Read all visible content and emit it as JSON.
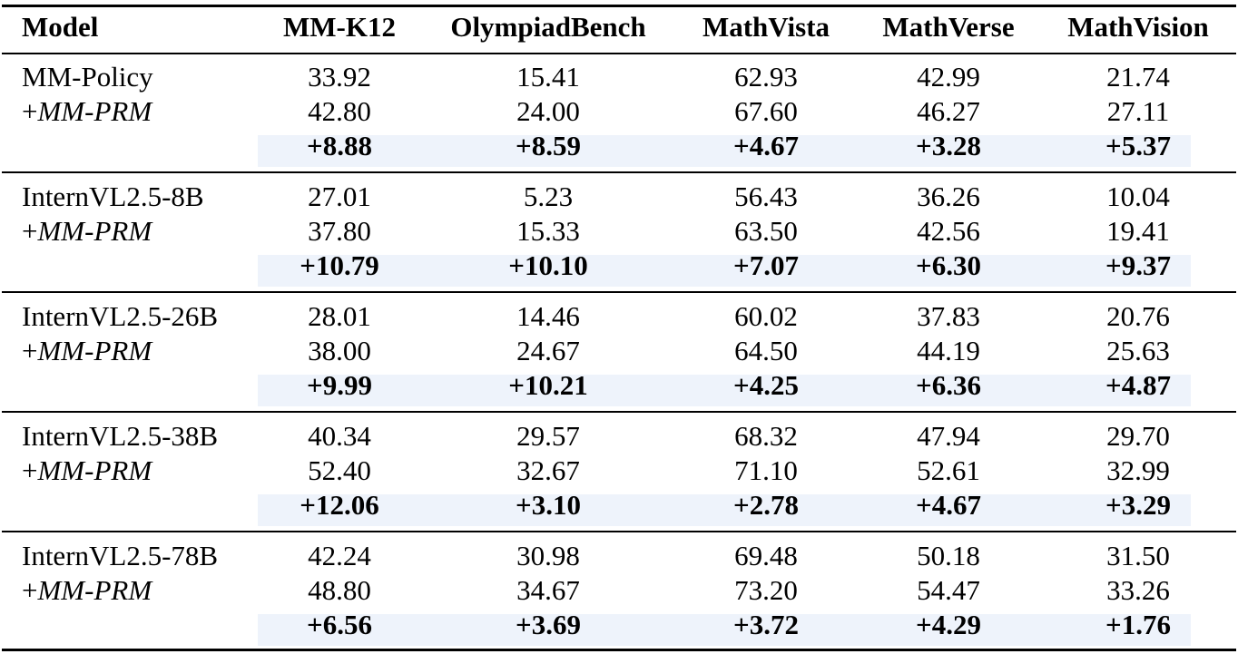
{
  "table": {
    "header": {
      "model": "Model",
      "columns": [
        "MM-K12",
        "OlympiadBench",
        "MathVista",
        "MathVerse",
        "MathVision"
      ]
    },
    "groups": [
      {
        "model": "MM-Policy",
        "prm_prefix": "+",
        "prm_name": "MM-PRM",
        "base": [
          "33.92",
          "15.41",
          "62.93",
          "42.99",
          "21.74"
        ],
        "prm": [
          "42.80",
          "24.00",
          "67.60",
          "46.27",
          "27.11"
        ],
        "gain": [
          "+8.88",
          "+8.59",
          "+4.67",
          "+3.28",
          "+5.37"
        ]
      },
      {
        "model": "InternVL2.5-8B",
        "prm_prefix": "+",
        "prm_name": "MM-PRM",
        "base": [
          "27.01",
          "5.23",
          "56.43",
          "36.26",
          "10.04"
        ],
        "prm": [
          "37.80",
          "15.33",
          "63.50",
          "42.56",
          "19.41"
        ],
        "gain": [
          "+10.79",
          "+10.10",
          "+7.07",
          "+6.30",
          "+9.37"
        ]
      },
      {
        "model": "InternVL2.5-26B",
        "prm_prefix": "+",
        "prm_name": "MM-PRM",
        "base": [
          "28.01",
          "14.46",
          "60.02",
          "37.83",
          "20.76"
        ],
        "prm": [
          "38.00",
          "24.67",
          "64.50",
          "44.19",
          "25.63"
        ],
        "gain": [
          "+9.99",
          "+10.21",
          "+4.25",
          "+6.36",
          "+4.87"
        ]
      },
      {
        "model": "InternVL2.5-38B",
        "prm_prefix": "+",
        "prm_name": "MM-PRM",
        "base": [
          "40.34",
          "29.57",
          "68.32",
          "47.94",
          "29.70"
        ],
        "prm": [
          "52.40",
          "32.67",
          "71.10",
          "52.61",
          "32.99"
        ],
        "gain": [
          "+12.06",
          "+3.10",
          "+2.78",
          "+4.67",
          "+3.29"
        ]
      },
      {
        "model": "InternVL2.5-78B",
        "prm_prefix": "+",
        "prm_name": "MM-PRM",
        "base": [
          "42.24",
          "30.98",
          "69.48",
          "50.18",
          "31.50"
        ],
        "prm": [
          "48.80",
          "34.67",
          "73.20",
          "54.47",
          "33.26"
        ],
        "gain": [
          "+6.56",
          "+3.69",
          "+3.72",
          "+4.29",
          "+1.76"
        ]
      }
    ],
    "highlight_color": "#eef3fb"
  }
}
